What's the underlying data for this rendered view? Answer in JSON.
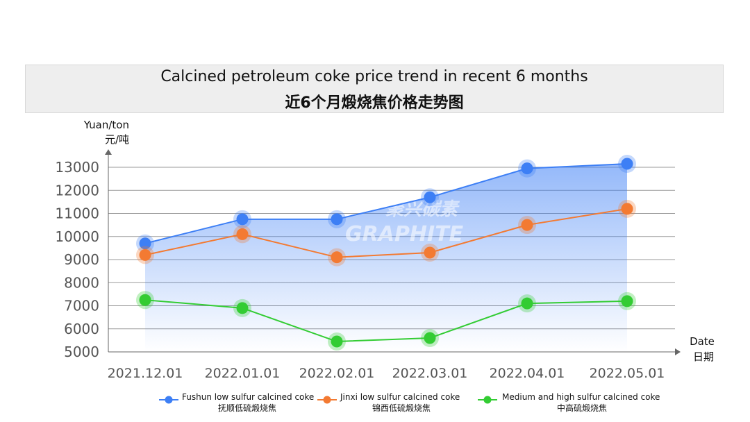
{
  "title": {
    "en": "Calcined petroleum coke price trend in recent 6 months",
    "zh": "近6个月煅烧焦价格走势图"
  },
  "watermark": {
    "brand_en": "GRAPHITE",
    "brand_zh": "聚兴碳素"
  },
  "chart_data": {
    "type": "line",
    "title": "Calcined petroleum coke price trend in recent 6 months",
    "ylabel": {
      "en": "Yuan/ton",
      "zh": "元/吨"
    },
    "xlabel": {
      "en": "Date",
      "zh": "日期"
    },
    "ylim": [
      5000,
      13000
    ],
    "yticks": [
      5000,
      6000,
      7000,
      8000,
      9000,
      10000,
      11000,
      12000,
      13000
    ],
    "grid": true,
    "legend": "bottom",
    "categories": [
      "2021.12.01",
      "2022.01.01",
      "2022.02.01",
      "2022.03.01",
      "2022.04.01",
      "2022.05.01"
    ],
    "series": [
      {
        "name": "Fushun low sulfur calcined coke",
        "name_zh": "抚顺低硫煅烧焦",
        "color": "#3d7ff5",
        "area": true,
        "values": [
          9700,
          10750,
          10750,
          11700,
          12950,
          13150
        ]
      },
      {
        "name": "Jinxi low sulfur calcined coke",
        "name_zh": "锦西低硫煅烧焦",
        "color": "#f37a32",
        "values": [
          9200,
          10100,
          9100,
          9300,
          10500,
          11200
        ]
      },
      {
        "name": "Medium and high sulfur calcined coke",
        "name_zh": "中高硫煅烧焦",
        "color": "#33cc33",
        "values": [
          7250,
          6900,
          5450,
          5600,
          7100,
          7200
        ]
      }
    ]
  }
}
